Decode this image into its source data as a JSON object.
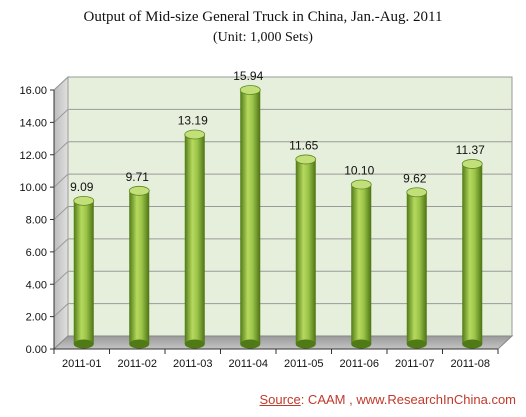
{
  "title": "Output of Mid-size General Truck in China, Jan.-Aug. 2011",
  "subtitle": "(Unit: 1,000 Sets)",
  "source": {
    "label": "Source",
    "text": ":  CAAM , www.ResearchInChina.com"
  },
  "colors": {
    "bar": "#8db43a",
    "plot_bg": "#e6efdb",
    "text_source": "#c0392b"
  },
  "chart_data": {
    "type": "bar",
    "title": "Output of Mid-size General Truck in China, Jan.-Aug. 2011",
    "subtitle": "(Unit: 1,000 Sets)",
    "xlabel": "",
    "ylabel": "",
    "categories": [
      "2011-01",
      "2011-02",
      "2011-03",
      "2011-04",
      "2011-05",
      "2011-06",
      "2011-07",
      "2011-08"
    ],
    "values": [
      9.09,
      9.71,
      13.19,
      15.94,
      11.65,
      10.1,
      9.62,
      11.37
    ],
    "value_labels": [
      "9.09",
      "9.71",
      "13.19",
      "15.94",
      "11.65",
      "10.10",
      "9.62",
      "11.37"
    ],
    "yticks": [
      "0.00",
      "2.00",
      "4.00",
      "6.00",
      "8.00",
      "10.00",
      "12.00",
      "14.00",
      "16.00"
    ],
    "ylim": [
      0,
      16
    ],
    "grid": true,
    "legend": "none",
    "style": "3d-cylinder"
  }
}
